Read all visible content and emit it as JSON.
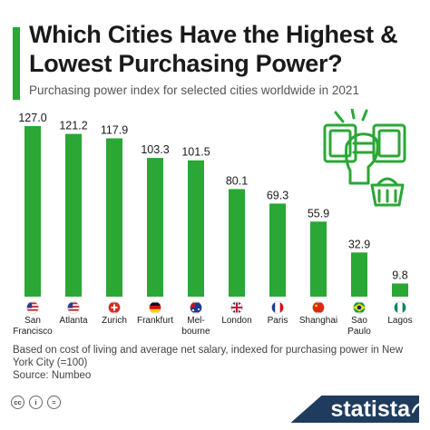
{
  "header": {
    "title": "Which Cities Have the Highest & Lowest Purchasing Power?",
    "subtitle": "Purchasing power index for selected cities worldwide in 2021"
  },
  "chart_data": {
    "type": "bar",
    "categories": [
      "San Francisco",
      "Atlanta",
      "Zurich",
      "Frankfurt",
      "Mel- bourne",
      "London",
      "Paris",
      "Shanghai",
      "Sao Paulo",
      "Lagos"
    ],
    "category_lines": [
      [
        "San",
        "Francisco"
      ],
      [
        "Atlanta"
      ],
      [
        "Zurich"
      ],
      [
        "Frankfurt"
      ],
      [
        "Mel-",
        "bourne"
      ],
      [
        "London"
      ],
      [
        "Paris"
      ],
      [
        "Shanghai"
      ],
      [
        "Sao",
        "Paulo"
      ],
      [
        "Lagos"
      ]
    ],
    "value_labels": [
      "127.0",
      "121.2",
      "117.9",
      "103.3",
      "101.5",
      "80.1",
      "69.3",
      "55.9",
      "32.9",
      "9.8"
    ],
    "values": [
      127.0,
      121.2,
      117.9,
      103.3,
      101.5,
      80.1,
      69.3,
      55.9,
      32.9,
      9.8
    ],
    "flags": [
      "us",
      "us",
      "ch",
      "de",
      "au",
      "gb",
      "fr",
      "cn",
      "br",
      "ng"
    ],
    "ylim": [
      0,
      127
    ],
    "bar_color": "#2aa735",
    "grid": false
  },
  "footer": {
    "note": "Based on cost of living and average net salary, indexed for purchasing power in New York City (=100)",
    "source": "Source: Numbeo",
    "license_icons": [
      "cc-icon",
      "by-icon",
      "equals-icon"
    ],
    "license_glyphs": [
      "cc",
      "i",
      "="
    ],
    "brand": "statista"
  },
  "colors": {
    "accent": "#2aa735",
    "brand_bg": "#1f3c5e"
  },
  "illustration": {
    "icon": "money-hand-basket-icon"
  }
}
